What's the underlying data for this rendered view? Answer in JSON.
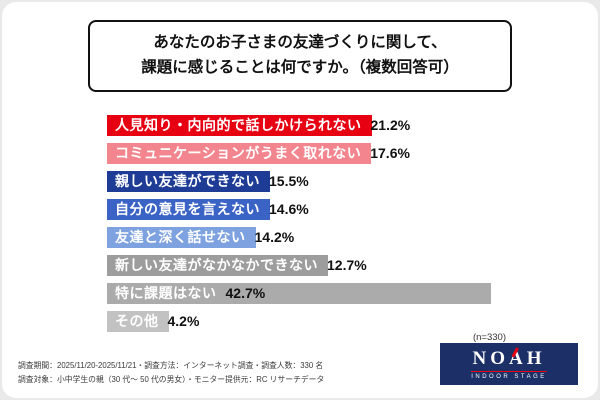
{
  "title": {
    "line1": "あなたのお子さまの友達づくりに関して、",
    "line2": "課題に感じることは何ですか。（複数回答可）"
  },
  "chart_data": {
    "type": "bar",
    "orientation": "horizontal",
    "title": "あなたのお子さまの友達づくりに関して、課題に感じることは何ですか。（複数回答可）",
    "categories": [
      "人見知り・内向的で話しかけられない",
      "コミュニケーションがうまく取れない",
      "親しい友達ができない",
      "自分の意見を言えない",
      "友達と深く話せない",
      "新しい友達がなかなかできない",
      "特に課題はない",
      "その他"
    ],
    "values": [
      21.2,
      17.6,
      15.5,
      14.6,
      14.2,
      12.7,
      42.7,
      4.2
    ],
    "value_labels": [
      "21.2%",
      "17.6%",
      "15.5%",
      "14.6%",
      "14.2%",
      "12.7%",
      "42.7%",
      "4.2%"
    ],
    "bar_colors": [
      "#e60012",
      "#f2858e",
      "#1e3c96",
      "#3b63c6",
      "#7ea2e0",
      "#9d9d9d",
      "#ababab",
      "#c2c2c2"
    ],
    "xlim": [
      0,
      45
    ],
    "grid": false,
    "note": "(n=330)"
  },
  "footer": {
    "line1": "調査期間：2025/11/20-2025/11/21・調査方法：インターネット調査・調査人数：330 名",
    "line2": "調査対象：小中学生の親（30 代〜 50 代の男女）・モニター提供元：RC リサーチデータ"
  },
  "logo": {
    "name": "NOAH",
    "subtitle": "INDOOR STAGE"
  }
}
